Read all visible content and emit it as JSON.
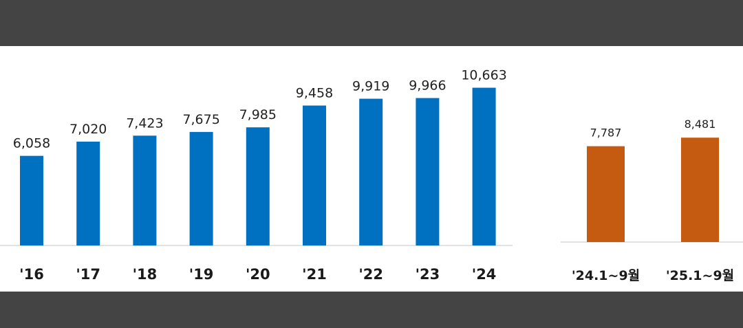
{
  "chart_data": [
    {
      "type": "bar",
      "categories": [
        "'16",
        "'17",
        "'18",
        "'19",
        "'20",
        "'21",
        "'22",
        "'23",
        "'24"
      ],
      "values": [
        6058,
        7020,
        7423,
        7675,
        7985,
        9458,
        9919,
        9966,
        10663
      ],
      "value_labels": [
        "6,058",
        "7,020",
        "7,423",
        "7,675",
        "7,985",
        "9,458",
        "9,919",
        "9,966",
        "10,663"
      ],
      "color": "#0070c0",
      "ylim": [
        0,
        11500
      ],
      "grid": false
    },
    {
      "type": "bar",
      "categories": [
        "'24.1~9월",
        "'25.1~9월"
      ],
      "values": [
        7787,
        8481
      ],
      "value_labels": [
        "7,787",
        "8,481"
      ],
      "color": "#c55a11",
      "ylim": [
        0,
        9500
      ],
      "grid": false
    }
  ]
}
